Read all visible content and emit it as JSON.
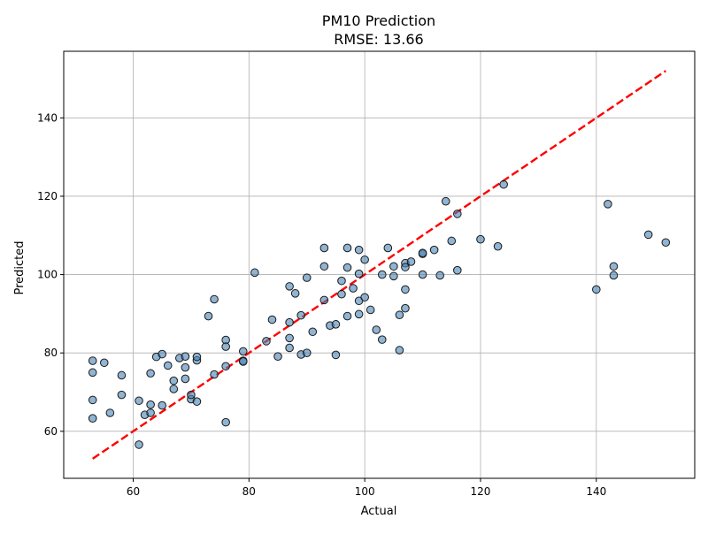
{
  "chart_data": {
    "type": "scatter",
    "title": "PM10 Prediction",
    "subtitle": "RMSE: 13.66",
    "xlabel": "Actual",
    "ylabel": "Predicted",
    "xlim": [
      48,
      157
    ],
    "ylim": [
      48,
      157
    ],
    "xticks": [
      60,
      80,
      100,
      120,
      140
    ],
    "yticks": [
      60,
      80,
      100,
      120,
      140
    ],
    "grid": true,
    "point_color": "#4682b4",
    "point_edge_color": "#1a1a1a",
    "reference_line": {
      "style": "dashed",
      "color": "#ff0000",
      "from": [
        53,
        53
      ],
      "to": [
        152,
        152
      ]
    },
    "points": [
      [
        53,
        78
      ],
      [
        53,
        75
      ],
      [
        53,
        68
      ],
      [
        53,
        63.3
      ],
      [
        55,
        77.5
      ],
      [
        56,
        64.7
      ],
      [
        58,
        74.3
      ],
      [
        58,
        69.3
      ],
      [
        61,
        67.8
      ],
      [
        61,
        56.6
      ],
      [
        62,
        64.2
      ],
      [
        63,
        64.7
      ],
      [
        63,
        66.8
      ],
      [
        63,
        74.8
      ],
      [
        64,
        79
      ],
      [
        65,
        79.7
      ],
      [
        65,
        66.6
      ],
      [
        66,
        76.8
      ],
      [
        67,
        72.9
      ],
      [
        67,
        70.8
      ],
      [
        68,
        78.7
      ],
      [
        69,
        79.1
      ],
      [
        69,
        76.3
      ],
      [
        69,
        73.4
      ],
      [
        70,
        68.2
      ],
      [
        70,
        69.3
      ],
      [
        71,
        78.1
      ],
      [
        71,
        79
      ],
      [
        71,
        67.6
      ],
      [
        73,
        89.4
      ],
      [
        74,
        93.7
      ],
      [
        74,
        74.5
      ],
      [
        76,
        83.3
      ],
      [
        76,
        81.6
      ],
      [
        76,
        76.6
      ],
      [
        76,
        62.3
      ],
      [
        79,
        80.4
      ],
      [
        79,
        78
      ],
      [
        79,
        77.8
      ],
      [
        81,
        100.5
      ],
      [
        83,
        83
      ],
      [
        84,
        88.5
      ],
      [
        85,
        79.1
      ],
      [
        87,
        97
      ],
      [
        87,
        87.8
      ],
      [
        87,
        83.8
      ],
      [
        87,
        81.3
      ],
      [
        88,
        95.2
      ],
      [
        89,
        89.6
      ],
      [
        89,
        79.6
      ],
      [
        90,
        99.2
      ],
      [
        90,
        80
      ],
      [
        91,
        85.4
      ],
      [
        93,
        106.8
      ],
      [
        93,
        102.1
      ],
      [
        93,
        93.5
      ],
      [
        94,
        87
      ],
      [
        95,
        87.3
      ],
      [
        95,
        79.5
      ],
      [
        96,
        98.4
      ],
      [
        96,
        95
      ],
      [
        97,
        106.8
      ],
      [
        97,
        101.8
      ],
      [
        97,
        89.4
      ],
      [
        98,
        96.5
      ],
      [
        99,
        106.3
      ],
      [
        99,
        100.2
      ],
      [
        99,
        93.3
      ],
      [
        99,
        89.9
      ],
      [
        100,
        103.8
      ],
      [
        100,
        94.2
      ],
      [
        101,
        91
      ],
      [
        102,
        85.9
      ],
      [
        103,
        100
      ],
      [
        103,
        83.4
      ],
      [
        104,
        106.8
      ],
      [
        105,
        102.1
      ],
      [
        105,
        99.6
      ],
      [
        106,
        89.7
      ],
      [
        106,
        80.7
      ],
      [
        107,
        102.9
      ],
      [
        107,
        101.9
      ],
      [
        107,
        96.2
      ],
      [
        107,
        91.4
      ],
      [
        108,
        103.3
      ],
      [
        110,
        105.3
      ],
      [
        110,
        105.5
      ],
      [
        110,
        100
      ],
      [
        112,
        106.3
      ],
      [
        113,
        99.8
      ],
      [
        114,
        118.7
      ],
      [
        115,
        108.6
      ],
      [
        116,
        115.5
      ],
      [
        116,
        101.1
      ],
      [
        120,
        109
      ],
      [
        123,
        107.2
      ],
      [
        124,
        123
      ],
      [
        140,
        96.2
      ],
      [
        142,
        118
      ],
      [
        143,
        102.1
      ],
      [
        143,
        99.8
      ],
      [
        149,
        110.2
      ],
      [
        152,
        108.2
      ]
    ]
  }
}
